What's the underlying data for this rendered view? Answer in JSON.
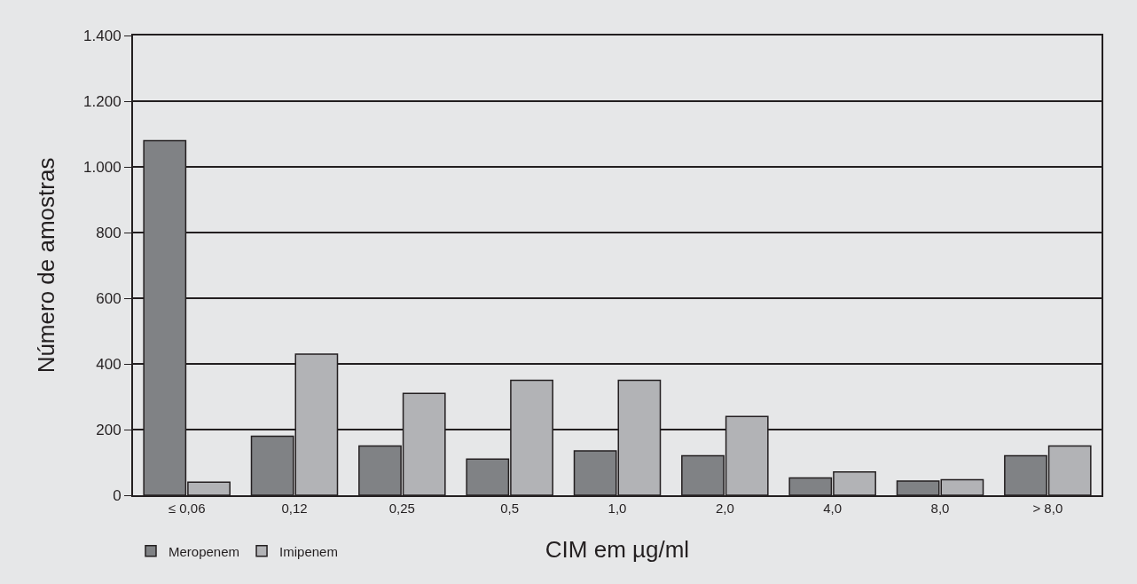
{
  "chart_data": {
    "type": "bar",
    "xlabel": "CIM em µg/ml",
    "ylabel": "Número de amostras",
    "categories": [
      "≤ 0,06",
      "0,12",
      "0,25",
      "0,5",
      "1,0",
      "2,0",
      "4,0",
      "8,0",
      "> 8,0"
    ],
    "series": [
      {
        "name": "Meropenem",
        "color": "#808285",
        "values": [
          1080,
          180,
          150,
          110,
          135,
          120,
          53,
          43,
          120
        ]
      },
      {
        "name": "Imipenem",
        "color": "#b2b3b6",
        "values": [
          40,
          430,
          310,
          350,
          350,
          240,
          71,
          47,
          150
        ]
      }
    ],
    "ylim": [
      0,
      1400
    ],
    "yticks": [
      0,
      {
        "value": 200,
        "label": "200"
      },
      {
        "value": 400,
        "label": "400"
      },
      {
        "value": 600,
        "label": "600"
      },
      {
        "value": 800,
        "label": "800"
      },
      {
        "value": 1000,
        "label": "1.000"
      },
      {
        "value": 1200,
        "label": "1.200"
      },
      {
        "value": 1400,
        "label": "1.400"
      }
    ],
    "grid": "y",
    "legend": "bottom left"
  }
}
